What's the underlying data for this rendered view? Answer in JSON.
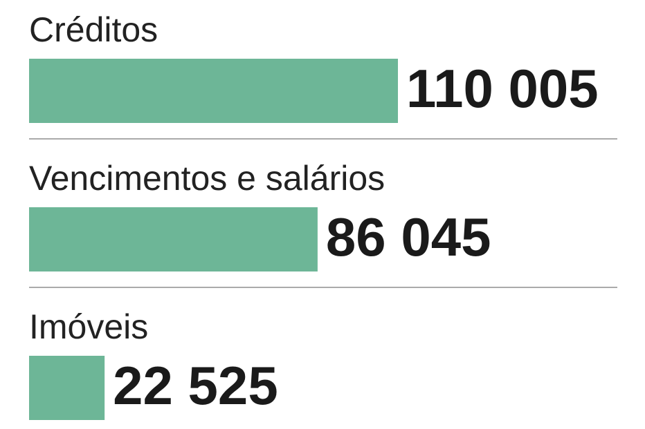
{
  "chart_data": {
    "type": "bar",
    "categories": [
      "Créditos",
      "Vencimentos e salários",
      "Imóveis"
    ],
    "values": [
      110005,
      86045,
      22525
    ],
    "value_labels": [
      "110 005",
      "86 045",
      "22 525"
    ],
    "color": "#6db697"
  }
}
